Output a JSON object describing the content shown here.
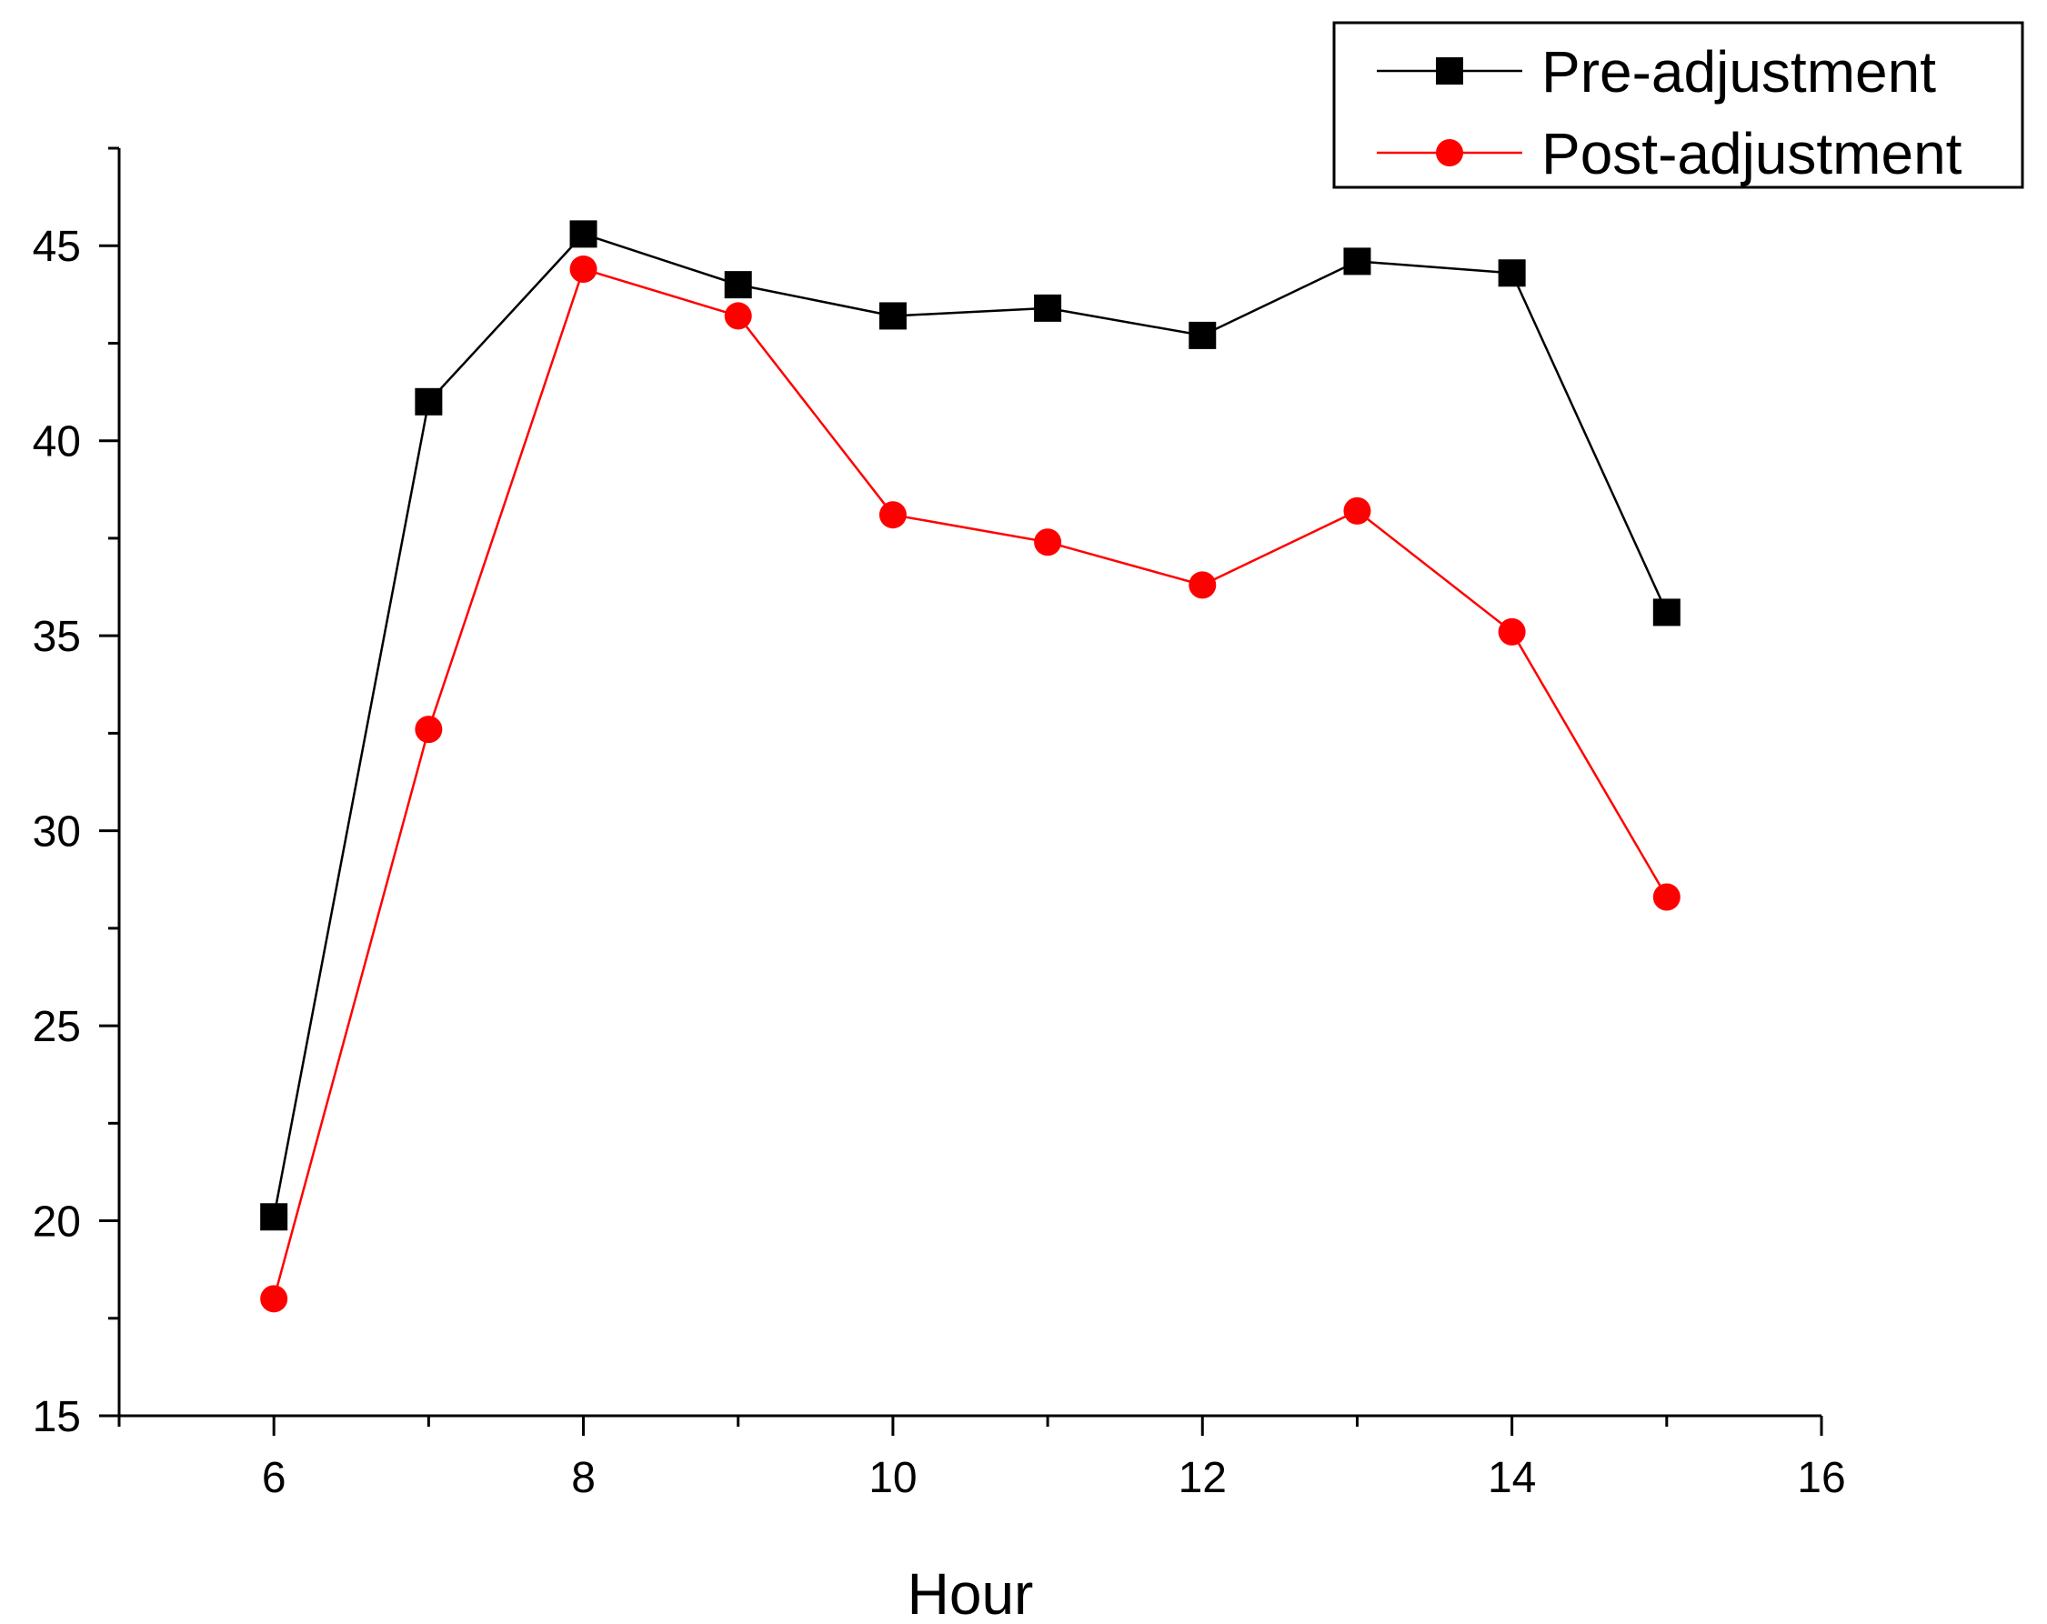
{
  "chart_data": {
    "type": "line",
    "title": "",
    "xlabel": "Hour",
    "ylabel": "",
    "xlim": [
      5,
      16
    ],
    "ylim": [
      15,
      47.5
    ],
    "xticks": [
      6,
      8,
      10,
      12,
      14,
      16
    ],
    "yticks": [
      15,
      20,
      25,
      30,
      35,
      40,
      45
    ],
    "x": [
      6,
      7,
      8,
      9,
      10,
      11,
      12,
      13,
      14,
      15
    ],
    "series": [
      {
        "name": "Pre-adjustment",
        "color": "#000000",
        "marker": "square",
        "values": [
          20.1,
          41.0,
          45.3,
          44.0,
          43.2,
          43.4,
          42.7,
          44.6,
          44.3,
          35.6
        ]
      },
      {
        "name": "Post-adjustment",
        "color": "#ff0000",
        "marker": "circle",
        "values": [
          18.0,
          32.6,
          44.4,
          43.2,
          38.1,
          37.4,
          36.3,
          38.2,
          35.1,
          28.3
        ]
      }
    ],
    "legend_position": "top-right",
    "grid": false
  }
}
